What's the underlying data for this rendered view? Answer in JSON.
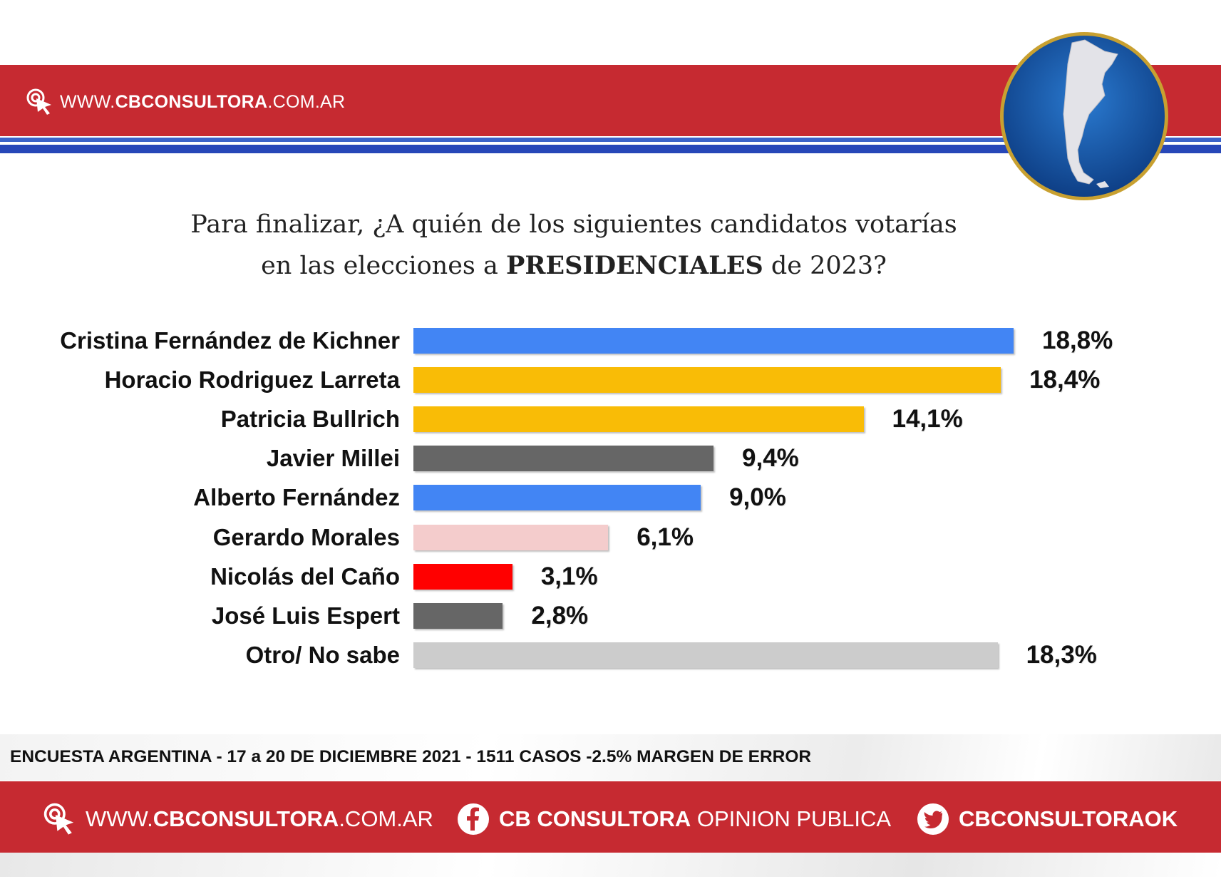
{
  "header": {
    "url_prefix": "WWW.",
    "url_brand": "CBCONSULTORA",
    "url_suffix": ".COM.AR"
  },
  "title": {
    "line1": "Para finalizar, ¿A quién de los siguientes candidatos votarías",
    "line2_a": "en las elecciones a ",
    "line2_b": "PRESIDENCIALES",
    "line2_c": "  de 2023?"
  },
  "chart_data": {
    "type": "bar",
    "orientation": "horizontal",
    "categories": [
      "Cristina Fernández de Kichner",
      "Horacio Rodriguez Larreta",
      "Patricia Bullrich",
      "Javier Millei",
      "Alberto Fernández",
      "Gerardo Morales",
      "Nicolás del Caño",
      "José Luis Espert",
      "Otro/ No sabe"
    ],
    "values": [
      18.8,
      18.4,
      14.1,
      9.4,
      9.0,
      6.1,
      3.1,
      2.8,
      18.3
    ],
    "value_labels": [
      "18,8%",
      "18,4%",
      "14,1%",
      "9,4%",
      "9,0%",
      "6,1%",
      "3,1%",
      "2,8%",
      "18,3%"
    ],
    "colors": [
      "#4285f4",
      "#f9bc06",
      "#f9bc06",
      "#666666",
      "#4285f4",
      "#f4cccc",
      "#ff0000",
      "#666666",
      "#cccccc"
    ],
    "xlim": [
      0,
      18.8
    ]
  },
  "footer": {
    "note": "ENCUESTA ARGENTINA - 17 a 20 DE DICIEMBRE 2021 - 1511 CASOS -2.5% MARGEN DE ERROR",
    "url_prefix": "WWW.",
    "url_brand": "CBCONSULTORA",
    "url_suffix": ".COM.AR",
    "facebook_brand": "CB CONSULTORA",
    "facebook_suffix": " OPINION PUBLICA",
    "twitter_handle": "CBCONSULTORAOK"
  },
  "colors": {
    "band_red": "#c62a31",
    "band_blue": "#2747b8",
    "globe_blue": "#1a5aa8",
    "globe_ring": "#c8a030"
  },
  "icons": [
    "click-cursor-icon",
    "argentina-map-globe",
    "facebook-icon",
    "twitter-icon"
  ]
}
